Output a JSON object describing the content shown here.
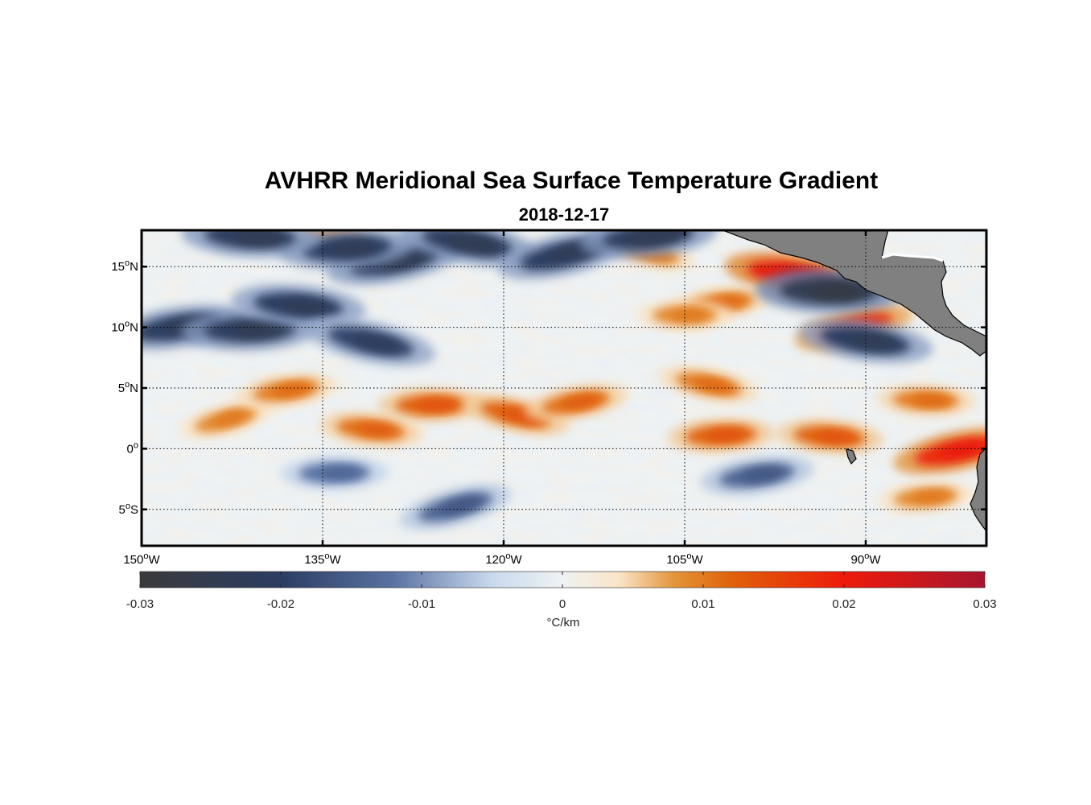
{
  "title": "AVHRR Meridional Sea Surface Temperature Gradient",
  "date": "2018-12-17",
  "colorbar": {
    "label": "°C/km",
    "ticks": [
      {
        "value": -0.03,
        "label": "-0.03"
      },
      {
        "value": -0.02,
        "label": "-0.02"
      },
      {
        "value": -0.01,
        "label": "-0.01"
      },
      {
        "value": 0,
        "label": "0"
      },
      {
        "value": 0.01,
        "label": "0.01"
      },
      {
        "value": 0.02,
        "label": "0.02"
      },
      {
        "value": 0.03,
        "label": "0.03"
      }
    ],
    "range": [
      -0.03,
      0.03
    ],
    "stops": [
      {
        "value": -0.03,
        "color": "#3a3a3c"
      },
      {
        "value": -0.02,
        "color": "#2b3d62"
      },
      {
        "value": -0.012,
        "color": "#5a72a3"
      },
      {
        "value": -0.005,
        "color": "#c9d9ee"
      },
      {
        "value": 0,
        "color": "#eef2f3"
      },
      {
        "value": 0.004,
        "color": "#fae5c8"
      },
      {
        "value": 0.008,
        "color": "#e39438"
      },
      {
        "value": 0.012,
        "color": "#e0620a"
      },
      {
        "value": 0.02,
        "color": "#ee1a0a"
      },
      {
        "value": 0.03,
        "color": "#a8152f"
      }
    ]
  },
  "map": {
    "lon_range": [
      -150,
      -80
    ],
    "lat_range": [
      -8,
      18
    ],
    "grid": true,
    "land_color": "#808080",
    "lon_ticks": [
      {
        "value": -150,
        "deg": "150",
        "hemi": "W"
      },
      {
        "value": -135,
        "deg": "135",
        "hemi": "W"
      },
      {
        "value": -120,
        "deg": "120",
        "hemi": "W"
      },
      {
        "value": -105,
        "deg": "105",
        "hemi": "W"
      },
      {
        "value": -90,
        "deg": "90",
        "hemi": "W"
      }
    ],
    "lat_ticks": [
      {
        "value": 15,
        "deg": "15",
        "hemi": "N"
      },
      {
        "value": 10,
        "deg": "10",
        "hemi": "N"
      },
      {
        "value": 5,
        "deg": "5",
        "hemi": "N"
      },
      {
        "value": 0,
        "deg": "0",
        "hemi": ""
      },
      {
        "value": -5,
        "deg": "5",
        "hemi": "S"
      }
    ],
    "features": [
      {
        "type": "positive",
        "value": 0.009,
        "lon": -143,
        "lat": 2.4
      },
      {
        "type": "positive",
        "value": 0.01,
        "lon": -138,
        "lat": 4.8
      },
      {
        "type": "positive",
        "value": 0.012,
        "lon": -126,
        "lat": 3.6
      },
      {
        "type": "positive",
        "value": 0.011,
        "lon": -131,
        "lat": 1.6
      },
      {
        "type": "positive",
        "value": 0.012,
        "lon": -119,
        "lat": 2.8
      },
      {
        "type": "positive",
        "value": 0.011,
        "lon": -114,
        "lat": 3.8
      },
      {
        "type": "positive",
        "value": 0.012,
        "lon": -102,
        "lat": 1.1
      },
      {
        "type": "positive",
        "value": 0.012,
        "lon": -93,
        "lat": 1.0
      },
      {
        "type": "positive",
        "value": 0.01,
        "lon": -103,
        "lat": 5.3
      },
      {
        "type": "positive",
        "value": 0.018,
        "lon": -82.5,
        "lat": -0.2
      },
      {
        "type": "positive",
        "value": 0.009,
        "lon": -85,
        "lat": -4.0
      },
      {
        "type": "positive",
        "value": 0.01,
        "lon": -85,
        "lat": 4.0
      },
      {
        "type": "positive",
        "value": 0.021,
        "lon": -96,
        "lat": 14.3
      },
      {
        "type": "positive",
        "value": 0.016,
        "lon": -91,
        "lat": 10.0
      },
      {
        "type": "positive",
        "value": 0.01,
        "lon": -102,
        "lat": 12.0
      },
      {
        "type": "positive",
        "value": 0.009,
        "lon": -105,
        "lat": 11.0
      },
      {
        "type": "positive",
        "value": 0.008,
        "lon": -134,
        "lat": 17.5
      },
      {
        "type": "positive",
        "value": 0.009,
        "lon": -108,
        "lat": 16.2
      },
      {
        "type": "negative",
        "value": -0.02,
        "lon": -147,
        "lat": 10.0
      },
      {
        "type": "negative",
        "value": -0.021,
        "lon": -141,
        "lat": 9.8
      },
      {
        "type": "negative",
        "value": -0.02,
        "lon": -137,
        "lat": 11.8
      },
      {
        "type": "negative",
        "value": -0.019,
        "lon": -131,
        "lat": 8.8
      },
      {
        "type": "negative",
        "value": -0.021,
        "lon": -129,
        "lat": 15.5
      },
      {
        "type": "negative",
        "value": -0.02,
        "lon": -133,
        "lat": 16.5
      },
      {
        "type": "negative",
        "value": -0.021,
        "lon": -141,
        "lat": 17.5
      },
      {
        "type": "negative",
        "value": -0.021,
        "lon": -123,
        "lat": 17.0
      },
      {
        "type": "negative",
        "value": -0.02,
        "lon": -115,
        "lat": 16.0
      },
      {
        "type": "negative",
        "value": -0.021,
        "lon": -108,
        "lat": 17.5
      },
      {
        "type": "negative",
        "value": -0.024,
        "lon": -93,
        "lat": 13.0
      },
      {
        "type": "negative",
        "value": -0.02,
        "lon": -90,
        "lat": 8.9
      },
      {
        "type": "negative",
        "value": -0.014,
        "lon": -124,
        "lat": -4.8
      },
      {
        "type": "negative",
        "value": -0.014,
        "lon": -99,
        "lat": -2.2
      },
      {
        "type": "negative",
        "value": -0.012,
        "lon": -134,
        "lat": -2.0
      }
    ]
  }
}
